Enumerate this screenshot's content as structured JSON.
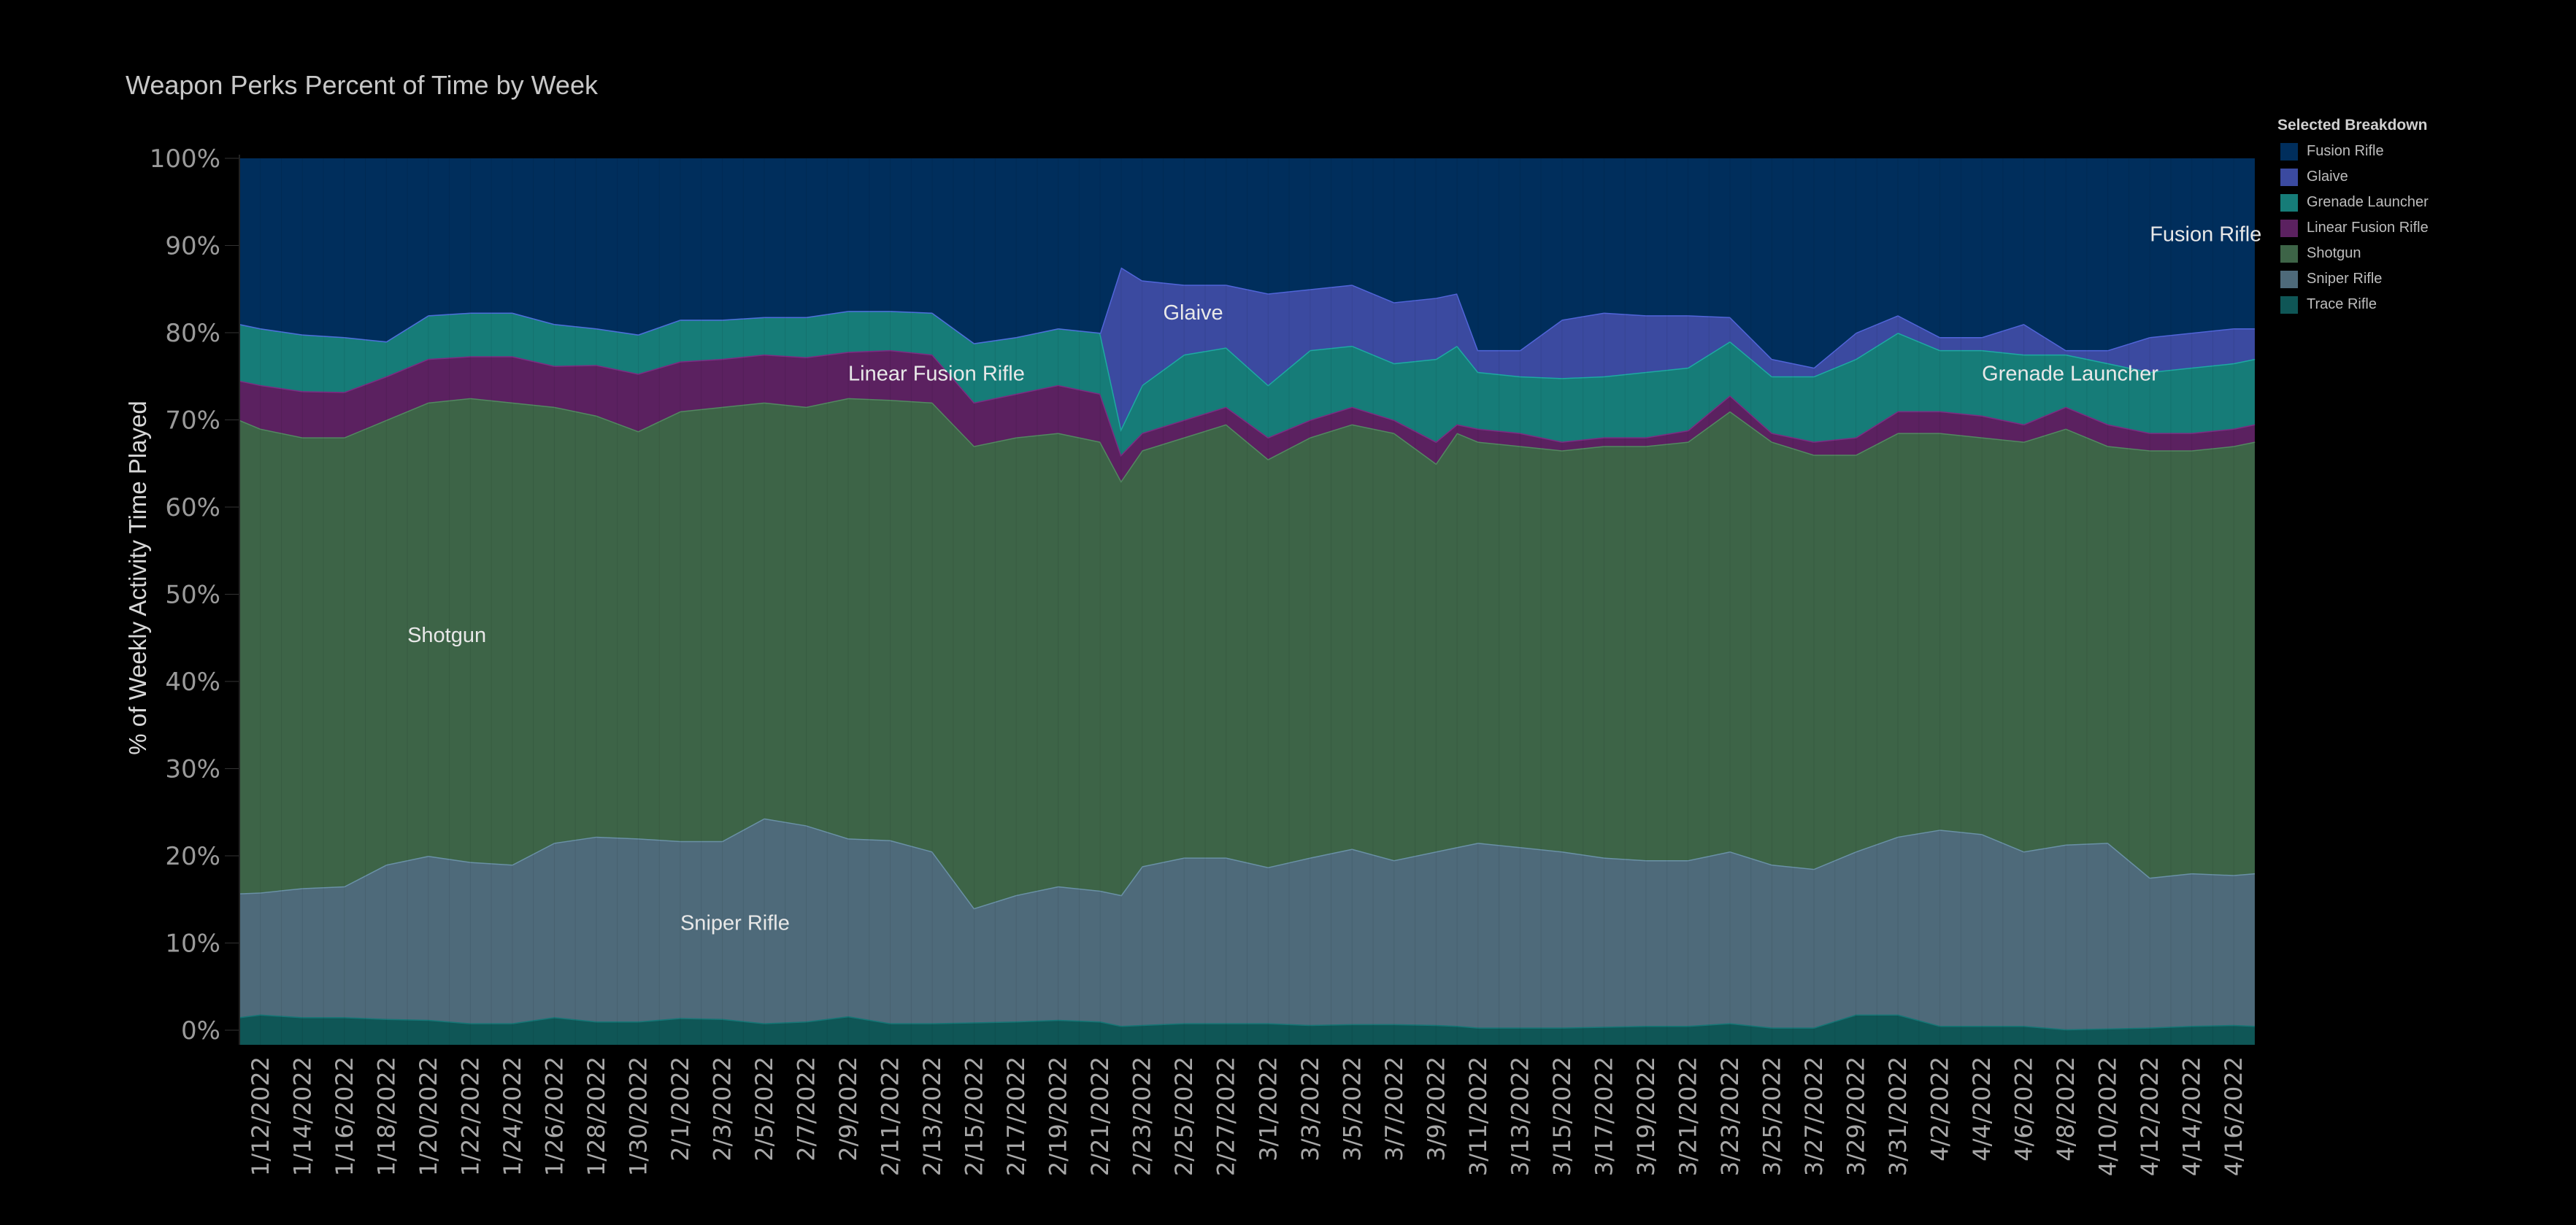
{
  "chart_data": {
    "type": "area",
    "stacked": true,
    "title": "Weapon Perks Percent of Time by Week",
    "xlabel": "",
    "ylabel": "% of Weekly Activity Time Played",
    "ylim": [
      0,
      100
    ],
    "yticks": [
      "0%",
      "10%",
      "20%",
      "30%",
      "40%",
      "50%",
      "60%",
      "70%",
      "80%",
      "90%",
      "100%"
    ],
    "x_range": [
      "1/11/2022",
      "4/17/2022"
    ],
    "x": [
      "1/11/2022",
      "1/12/2022",
      "1/14/2022",
      "1/16/2022",
      "1/18/2022",
      "1/20/2022",
      "1/22/2022",
      "1/24/2022",
      "1/26/2022",
      "1/28/2022",
      "1/30/2022",
      "2/1/2022",
      "2/3/2022",
      "2/5/2022",
      "2/7/2022",
      "2/9/2022",
      "2/11/2022",
      "2/13/2022",
      "2/15/2022",
      "2/17/2022",
      "2/19/2022",
      "2/21/2022",
      "2/22/2022",
      "2/23/2022",
      "2/25/2022",
      "2/27/2022",
      "3/1/2022",
      "3/3/2022",
      "3/5/2022",
      "3/7/2022",
      "3/9/2022",
      "3/10/2022",
      "3/11/2022",
      "3/13/2022",
      "3/15/2022",
      "3/17/2022",
      "3/19/2022",
      "3/21/2022",
      "3/23/2022",
      "3/25/2022",
      "3/27/2022",
      "3/29/2022",
      "3/31/2022",
      "4/2/2022",
      "4/4/2022",
      "4/6/2022",
      "4/8/2022",
      "4/10/2022",
      "4/12/2022",
      "4/14/2022",
      "4/16/2022",
      "4/17/2022"
    ],
    "xtick_labels": [
      "1/12/2022",
      "1/14/2022",
      "1/16/2022",
      "1/18/2022",
      "1/20/2022",
      "1/22/2022",
      "1/24/2022",
      "1/26/2022",
      "1/28/2022",
      "1/30/2022",
      "2/1/2022",
      "2/3/2022",
      "2/5/2022",
      "2/7/2022",
      "2/9/2022",
      "2/11/2022",
      "2/13/2022",
      "2/15/2022",
      "2/17/2022",
      "2/19/2022",
      "2/21/2022",
      "2/23/2022",
      "2/25/2022",
      "2/27/2022",
      "3/1/2022",
      "3/3/2022",
      "3/5/2022",
      "3/7/2022",
      "3/9/2022",
      "3/11/2022",
      "3/13/2022",
      "3/15/2022",
      "3/17/2022",
      "3/19/2022",
      "3/21/2022",
      "3/23/2022",
      "3/25/2022",
      "3/27/2022",
      "3/29/2022",
      "3/31/2022",
      "4/2/2022",
      "4/4/2022",
      "4/6/2022",
      "4/8/2022",
      "4/10/2022",
      "4/12/2022",
      "4/14/2022",
      "4/16/2022"
    ],
    "series": [
      {
        "name": "Trace Rifle",
        "color": "#0f5656",
        "values": [
          1.5,
          1.8,
          1.5,
          1.5,
          1.3,
          1.2,
          0.8,
          0.8,
          1.5,
          1.0,
          1.0,
          1.4,
          1.3,
          0.8,
          1.0,
          1.6,
          0.8,
          0.8,
          0.9,
          1.0,
          1.2,
          1.0,
          0.5,
          0.6,
          0.8,
          0.8,
          0.8,
          0.6,
          0.7,
          0.7,
          0.6,
          0.5,
          0.3,
          0.3,
          0.3,
          0.4,
          0.5,
          0.5,
          0.8,
          0.3,
          0.3,
          1.8,
          1.8,
          0.5,
          0.5,
          0.5,
          0.1,
          0.2,
          0.3,
          0.5,
          0.6,
          0.5
        ]
      },
      {
        "name": "Sniper Rifle",
        "color": "#4e6a7a",
        "values": [
          14.2,
          14.0,
          14.8,
          15.0,
          17.7,
          18.8,
          18.5,
          18.2,
          20.0,
          21.2,
          21.0,
          20.3,
          20.4,
          23.5,
          22.5,
          20.4,
          21.0,
          19.7,
          13.1,
          14.5,
          15.3,
          15.0,
          15.0,
          18.2,
          19.0,
          19.0,
          17.9,
          19.2,
          20.1,
          18.8,
          19.9,
          20.5,
          21.2,
          20.7,
          20.2,
          19.4,
          19.0,
          19.0,
          19.7,
          18.7,
          18.2,
          18.7,
          20.4,
          22.5,
          22.0,
          20.0,
          21.2,
          21.3,
          17.2,
          17.5,
          17.2,
          17.5
        ]
      },
      {
        "name": "Shotgun",
        "color": "#3d6447",
        "values": [
          54.3,
          53.2,
          51.7,
          51.5,
          51.0,
          52.0,
          53.2,
          53.0,
          50.0,
          48.3,
          46.7,
          49.3,
          49.8,
          47.7,
          48.0,
          50.5,
          50.5,
          51.5,
          53.0,
          52.5,
          52.0,
          51.5,
          47.5,
          47.7,
          48.2,
          49.7,
          46.8,
          48.2,
          48.7,
          49.0,
          44.5,
          47.5,
          46.0,
          46.0,
          46.0,
          47.2,
          47.5,
          48.0,
          50.5,
          48.5,
          47.5,
          45.5,
          46.3,
          45.5,
          45.5,
          47.0,
          47.7,
          45.5,
          49.0,
          48.5,
          49.2,
          49.5
        ]
      },
      {
        "name": "Linear Fusion Rifle",
        "color": "#5b2160",
        "values": [
          4.5,
          5.0,
          5.3,
          5.2,
          5.0,
          5.0,
          4.8,
          5.3,
          4.7,
          5.8,
          6.6,
          5.7,
          5.5,
          5.5,
          5.7,
          5.3,
          5.7,
          5.5,
          5.0,
          5.0,
          5.5,
          5.5,
          3.0,
          2.0,
          2.0,
          2.0,
          2.5,
          2.0,
          2.0,
          1.5,
          2.5,
          1.0,
          1.5,
          1.5,
          1.0,
          1.0,
          1.0,
          1.3,
          1.8,
          1.0,
          1.5,
          2.0,
          2.5,
          2.5,
          2.5,
          2.0,
          2.5,
          2.5,
          2.0,
          2.0,
          2.0,
          2.0
        ]
      },
      {
        "name": "Grenade Launcher",
        "color": "#167c78",
        "values": [
          6.5,
          6.5,
          6.5,
          6.3,
          4.0,
          5.0,
          5.0,
          5.0,
          4.8,
          4.2,
          4.5,
          4.8,
          4.5,
          4.3,
          4.6,
          4.7,
          4.5,
          4.8,
          6.8,
          6.5,
          6.5,
          7.0,
          3.0,
          5.5,
          7.5,
          6.8,
          6.0,
          8.0,
          7.0,
          6.5,
          9.5,
          9.0,
          6.5,
          6.5,
          7.3,
          7.0,
          7.5,
          7.2,
          6.2,
          6.5,
          7.5,
          9.0,
          9.0,
          7.0,
          7.5,
          8.0,
          6.0,
          7.0,
          7.0,
          7.5,
          7.5,
          7.5
        ]
      },
      {
        "name": "Glaive",
        "color": "#3b4aa0",
        "values": [
          0,
          0,
          0,
          0,
          0,
          0,
          0,
          0,
          0,
          0,
          0,
          0,
          0,
          0,
          0,
          0,
          0,
          0,
          0,
          0,
          0,
          0,
          18.5,
          12.0,
          8.0,
          7.2,
          10.5,
          7.0,
          7.0,
          7.0,
          7.0,
          6.0,
          2.5,
          3.0,
          6.7,
          7.3,
          6.5,
          6.0,
          2.8,
          2.0,
          1.0,
          3.0,
          2.0,
          1.5,
          1.5,
          3.5,
          0.5,
          1.5,
          4.0,
          4.0,
          4.0,
          3.5
        ]
      },
      {
        "name": "Fusion Rifle",
        "color": "#002e5c",
        "values": [
          19,
          19.5,
          20.2,
          20.5,
          21,
          18,
          17.7,
          17.7,
          19,
          19.5,
          20.2,
          18.5,
          18.5,
          18.2,
          18.2,
          17.5,
          17.5,
          17.7,
          21.2,
          20.5,
          19.5,
          20,
          12.5,
          14,
          14.5,
          14.5,
          15.5,
          15,
          14.5,
          16.5,
          16,
          15.5,
          22,
          22,
          18.5,
          17.7,
          18,
          18,
          18.2,
          23,
          24,
          20,
          18,
          20.5,
          20.5,
          19,
          22,
          22,
          20.5,
          20,
          19.5,
          19.5
        ]
      }
    ],
    "annotations": [
      {
        "text": "Shotgun",
        "x": "1/19/2022",
        "y": 44.5
      },
      {
        "text": "Sniper Rifle",
        "x": "2/1/2022",
        "y": 11.5
      },
      {
        "text": "Linear Fusion Rifle",
        "x": "2/9/2022",
        "y": 74.5
      },
      {
        "text": "Glaive",
        "x": "2/24/2022",
        "y": 81.5
      },
      {
        "text": "Grenade Launcher",
        "x": "4/4/2022",
        "y": 74.5
      },
      {
        "text": "Fusion Rifle",
        "x": "4/12/2022",
        "y": 90.5
      }
    ],
    "legend": {
      "title": "Selected Breakdown",
      "position": "right",
      "order": [
        "Fusion Rifle",
        "Glaive",
        "Grenade Launcher",
        "Linear Fusion Rifle",
        "Shotgun",
        "Sniper Rifle",
        "Trace Rifle"
      ]
    }
  }
}
